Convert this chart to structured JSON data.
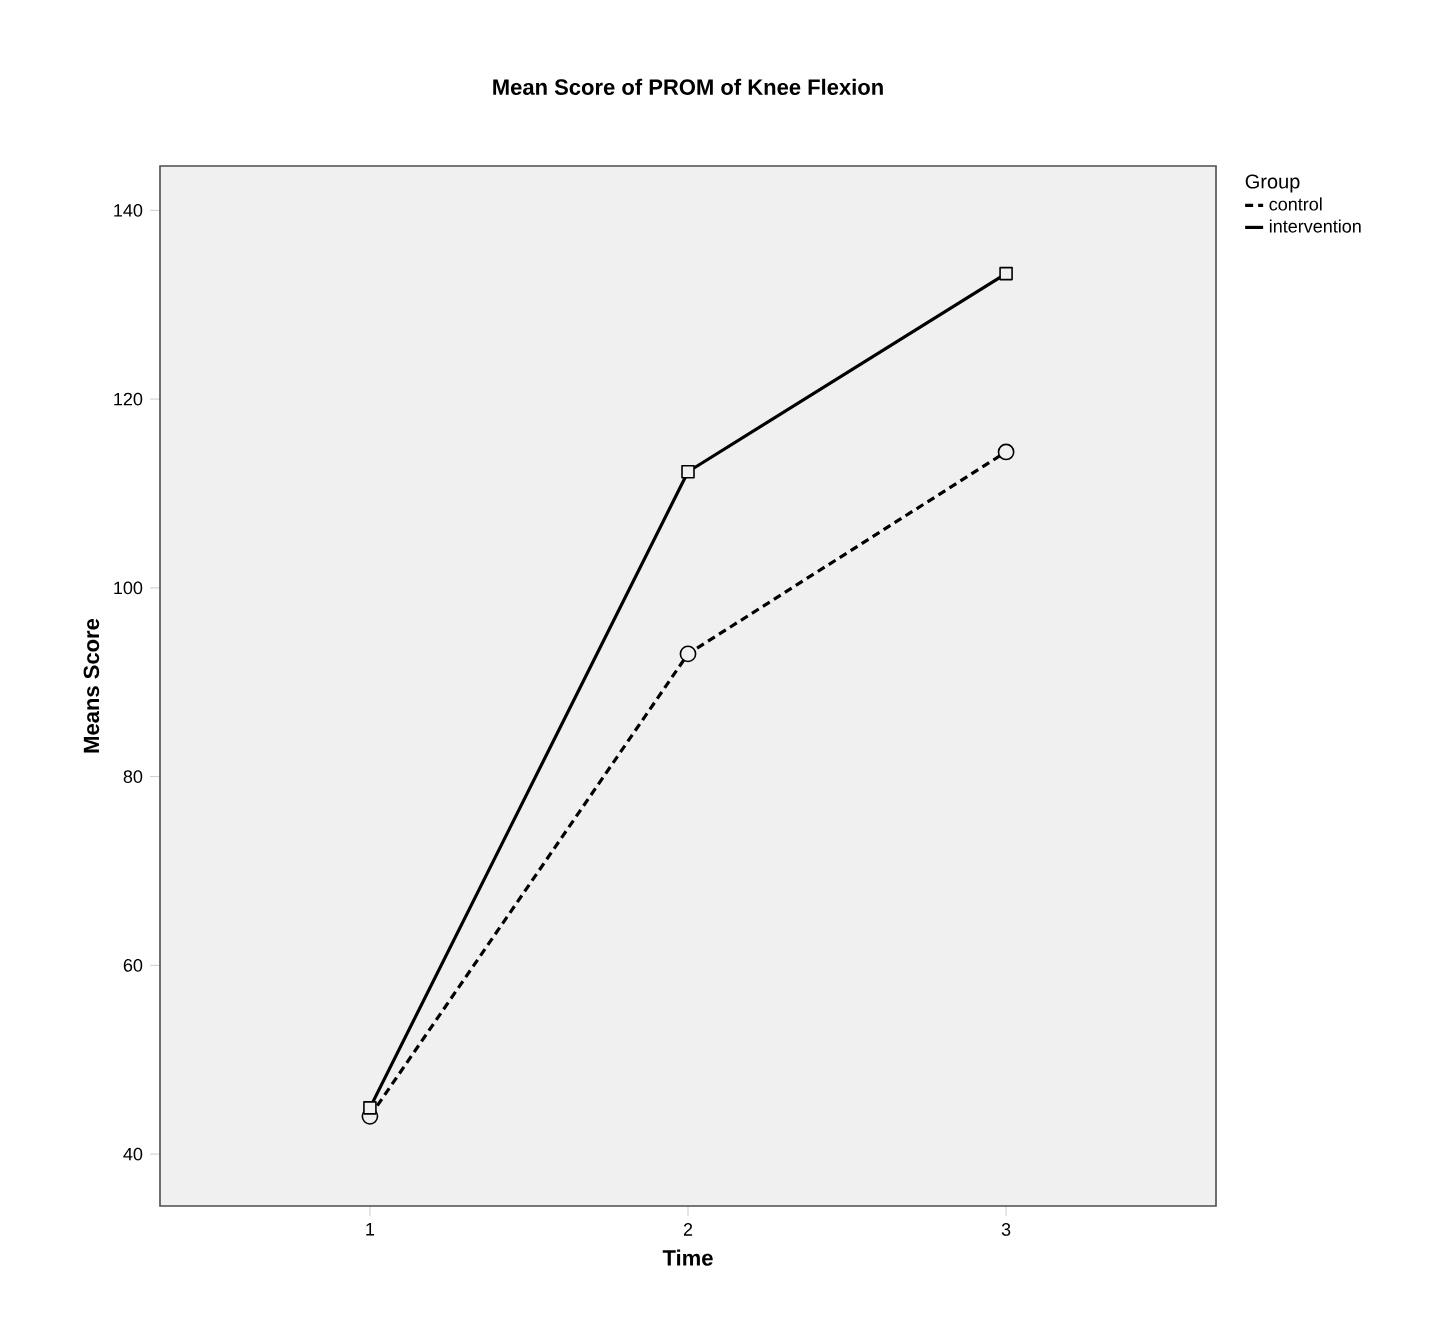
{
  "chart_data": {
    "type": "line",
    "title": "Mean Score of PROM of Knee Flexion",
    "xlabel": "Time",
    "ylabel": "Means Score",
    "legend_title": "Group",
    "x": [
      1,
      2,
      3
    ],
    "series": [
      {
        "name": "control",
        "color": "#000000",
        "marker": "circle",
        "line_style": "dashed",
        "values": [
          44.0,
          93.0,
          114.4
        ]
      },
      {
        "name": "intervention",
        "color": "#000000",
        "marker": "square",
        "line_style": "solid",
        "values": [
          44.9,
          112.3,
          133.3
        ]
      }
    ],
    "xlim": [
      0.34,
      3.66
    ],
    "ylim": [
      34.5,
      144.7
    ],
    "xticks": [
      1,
      2,
      3
    ],
    "yticks": [
      40,
      60,
      80,
      100,
      120,
      140
    ],
    "grid": false,
    "legend": "right"
  }
}
